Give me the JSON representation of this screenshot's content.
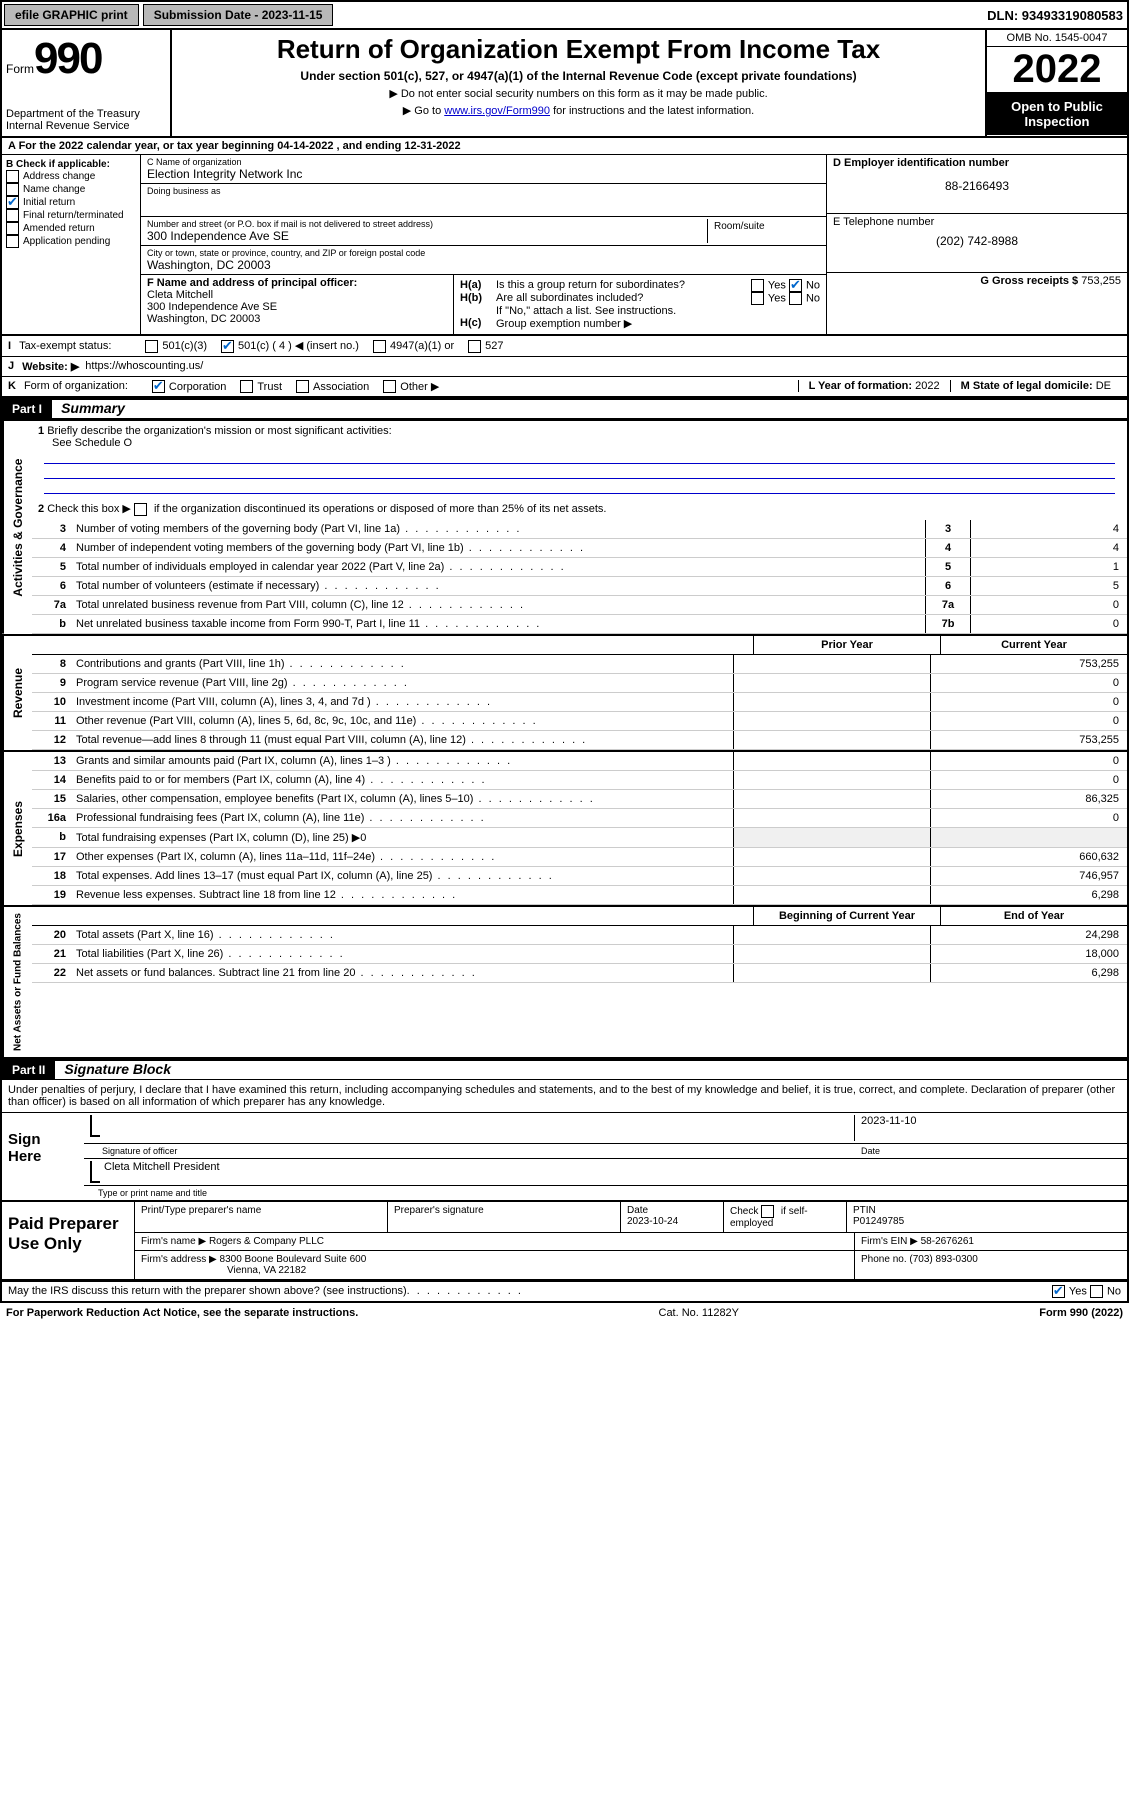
{
  "topbar": {
    "efile": "efile GRAPHIC print",
    "sub_label": "Submission Date - 2023-11-15",
    "dln_label": "DLN: 93493319080583"
  },
  "header": {
    "form_word": "Form",
    "form_num": "990",
    "dept": "Department of the Treasury\nInternal Revenue Service",
    "title": "Return of Organization Exempt From Income Tax",
    "subtitle": "Under section 501(c), 527, or 4947(a)(1) of the Internal Revenue Code (except private foundations)",
    "note1": "▶ Do not enter social security numbers on this form as it may be made public.",
    "note2_pre": "▶ Go to ",
    "note2_link": "www.irs.gov/Form990",
    "note2_post": " for instructions and the latest information.",
    "omb": "OMB No. 1545-0047",
    "year": "2022",
    "open": "Open to Public Inspection"
  },
  "period": {
    "prefix": "A For the 2022 calendar year, or tax year beginning ",
    "begin": "04-14-2022",
    "mid": " , and ending ",
    "end": "12-31-2022"
  },
  "colB": {
    "label": "B Check if applicable:",
    "opts": [
      "Address change",
      "Name change",
      "Initial return",
      "Final return/terminated",
      "Amended return",
      "Application pending"
    ],
    "checked_idx": 2
  },
  "colC": {
    "name_label": "C Name of organization",
    "name": "Election Integrity Network Inc",
    "dba_label": "Doing business as",
    "dba": "",
    "street_label": "Number and street (or P.O. box if mail is not delivered to street address)",
    "room_label": "Room/suite",
    "street": "300 Independence Ave SE",
    "city_label": "City or town, state or province, country, and ZIP or foreign postal code",
    "city": "Washington, DC  20003",
    "officer_label": "F Name and address of principal officer:",
    "officer_name": "Cleta Mitchell",
    "officer_addr1": "300 Independence Ave SE",
    "officer_addr2": "Washington, DC  20003"
  },
  "colD": {
    "ein_label": "D Employer identification number",
    "ein": "88-2166493",
    "phone_label": "E Telephone number",
    "phone": "(202) 742-8988",
    "gross_label": "G Gross receipts $",
    "gross": "753,255"
  },
  "h": {
    "a_label": "H(a)",
    "a_text": "Is this a group return for subordinates?",
    "b_label": "H(b)",
    "b_text": "Are all subordinates included?",
    "b_note": "If \"No,\" attach a list. See instructions.",
    "c_label": "H(c)",
    "c_text": "Group exemption number ▶",
    "yes": "Yes",
    "no": "No",
    "a_checked": "no"
  },
  "rowI": {
    "label": "I",
    "text": "Tax-exempt status:",
    "opts": [
      "501(c)(3)",
      "501(c) ( 4 ) ◀ (insert no.)",
      "4947(a)(1) or",
      "527"
    ],
    "checked_idx": 1
  },
  "rowJ": {
    "label": "J",
    "text": "Website: ▶",
    "val": "https://whoscounting.us/"
  },
  "rowK": {
    "label": "K",
    "text": "Form of organization:",
    "opts": [
      "Corporation",
      "Trust",
      "Association",
      "Other ▶"
    ],
    "checked_idx": 0,
    "L_label": "L Year of formation:",
    "L_val": "2022",
    "M_label": "M State of legal domicile:",
    "M_val": "DE"
  },
  "part1": {
    "header": "Part I",
    "title": "Summary",
    "l1_label": "1",
    "l1_text": "Briefly describe the organization's mission or most significant activities:",
    "l1_val": "See Schedule O",
    "l2_text": "Check this box ▶",
    "l2_post": " if the organization discontinued its operations or disposed of more than 25% of its net assets.",
    "lines_gov": [
      {
        "n": "3",
        "t": "Number of voting members of the governing body (Part VI, line 1a)",
        "box": "3",
        "v": "4"
      },
      {
        "n": "4",
        "t": "Number of independent voting members of the governing body (Part VI, line 1b)",
        "box": "4",
        "v": "4"
      },
      {
        "n": "5",
        "t": "Total number of individuals employed in calendar year 2022 (Part V, line 2a)",
        "box": "5",
        "v": "1"
      },
      {
        "n": "6",
        "t": "Total number of volunteers (estimate if necessary)",
        "box": "6",
        "v": "5"
      },
      {
        "n": "7a",
        "t": "Total unrelated business revenue from Part VIII, column (C), line 12",
        "box": "7a",
        "v": "0"
      },
      {
        "n": "b",
        "t": "Net unrelated business taxable income from Form 990-T, Part I, line 11",
        "box": "7b",
        "v": "0"
      }
    ],
    "col_prior": "Prior Year",
    "col_current": "Current Year",
    "rev": [
      {
        "n": "8",
        "t": "Contributions and grants (Part VIII, line 1h)",
        "p": "",
        "c": "753,255"
      },
      {
        "n": "9",
        "t": "Program service revenue (Part VIII, line 2g)",
        "p": "",
        "c": "0"
      },
      {
        "n": "10",
        "t": "Investment income (Part VIII, column (A), lines 3, 4, and 7d )",
        "p": "",
        "c": "0"
      },
      {
        "n": "11",
        "t": "Other revenue (Part VIII, column (A), lines 5, 6d, 8c, 9c, 10c, and 11e)",
        "p": "",
        "c": "0"
      },
      {
        "n": "12",
        "t": "Total revenue—add lines 8 through 11 (must equal Part VIII, column (A), line 12)",
        "p": "",
        "c": "753,255"
      }
    ],
    "exp": [
      {
        "n": "13",
        "t": "Grants and similar amounts paid (Part IX, column (A), lines 1–3 )",
        "p": "",
        "c": "0"
      },
      {
        "n": "14",
        "t": "Benefits paid to or for members (Part IX, column (A), line 4)",
        "p": "",
        "c": "0"
      },
      {
        "n": "15",
        "t": "Salaries, other compensation, employee benefits (Part IX, column (A), lines 5–10)",
        "p": "",
        "c": "86,325"
      },
      {
        "n": "16a",
        "t": "Professional fundraising fees (Part IX, column (A), line 11e)",
        "p": "",
        "c": "0"
      },
      {
        "n": "b",
        "t": "Total fundraising expenses (Part IX, column (D), line 25) ▶0",
        "p": null,
        "c": null
      },
      {
        "n": "17",
        "t": "Other expenses (Part IX, column (A), lines 11a–11d, 11f–24e)",
        "p": "",
        "c": "660,632"
      },
      {
        "n": "18",
        "t": "Total expenses. Add lines 13–17 (must equal Part IX, column (A), line 25)",
        "p": "",
        "c": "746,957"
      },
      {
        "n": "19",
        "t": "Revenue less expenses. Subtract line 18 from line 12",
        "p": "",
        "c": "6,298"
      }
    ],
    "col_begin": "Beginning of Current Year",
    "col_end": "End of Year",
    "net": [
      {
        "n": "20",
        "t": "Total assets (Part X, line 16)",
        "p": "",
        "c": "24,298"
      },
      {
        "n": "21",
        "t": "Total liabilities (Part X, line 26)",
        "p": "",
        "c": "18,000"
      },
      {
        "n": "22",
        "t": "Net assets or fund balances. Subtract line 21 from line 20",
        "p": "",
        "c": "6,298"
      }
    ],
    "side_gov": "Activities & Governance",
    "side_rev": "Revenue",
    "side_exp": "Expenses",
    "side_net": "Net Assets or Fund Balances"
  },
  "part2": {
    "header": "Part II",
    "title": "Signature Block",
    "penalty": "Under penalties of perjury, I declare that I have examined this return, including accompanying schedules and statements, and to the best of my knowledge and belief, it is true, correct, and complete. Declaration of preparer (other than officer) is based on all information of which preparer has any knowledge.",
    "sign_here": "Sign Here",
    "sig_officer": "Signature of officer",
    "sig_date_label": "Date",
    "sig_date": "2023-11-10",
    "officer_name": "Cleta Mitchell  President",
    "type_name": "Type or print name and title",
    "paid": "Paid Preparer Use Only",
    "prep_name_label": "Print/Type preparer's name",
    "prep_sig_label": "Preparer's signature",
    "prep_date_label": "Date",
    "prep_date": "2023-10-24",
    "check_if": "Check",
    "self_emp": "if self-employed",
    "ptin_label": "PTIN",
    "ptin": "P01249785",
    "firm_name_label": "Firm's name    ▶",
    "firm_name": "Rogers & Company PLLC",
    "firm_ein_label": "Firm's EIN ▶",
    "firm_ein": "58-2676261",
    "firm_addr_label": "Firm's address ▶",
    "firm_addr1": "8300 Boone Boulevard Suite 600",
    "firm_addr2": "Vienna, VA  22182",
    "firm_phone_label": "Phone no.",
    "firm_phone": "(703) 893-0300",
    "discuss": "May the IRS discuss this return with the preparer shown above? (see instructions)",
    "discuss_checked": "yes"
  },
  "footer": {
    "pra": "For Paperwork Reduction Act Notice, see the separate instructions.",
    "cat": "Cat. No. 11282Y",
    "form": "Form 990 (2022)"
  }
}
